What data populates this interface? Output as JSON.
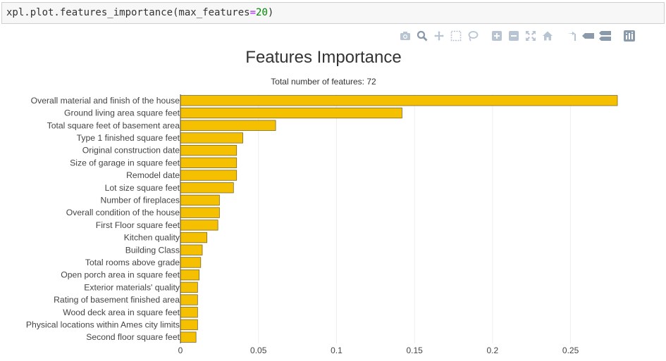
{
  "code": {
    "prefix": "xpl.plot.features_importance(max_features",
    "equals": "=",
    "number": "20",
    "suffix": ")"
  },
  "modebar": {
    "icons": [
      "camera-icon",
      "zoom-icon",
      "pan-icon",
      "box-select-icon",
      "lasso-icon",
      "zoom-in-icon",
      "zoom-out-icon",
      "autoscale-icon",
      "reset-axes-icon",
      "spike-lines-icon",
      "hover-closest-icon",
      "hover-compare-icon",
      "plotly-logo-icon"
    ]
  },
  "chart_data": {
    "type": "bar",
    "orientation": "horizontal",
    "title": "Features Importance",
    "subtitle": "Total number of features: 72",
    "xlabel": "",
    "ylabel": "",
    "xlim": [
      0,
      0.28
    ],
    "xticks": [
      0,
      0.05,
      0.1,
      0.15,
      0.2,
      0.25
    ],
    "xtick_labels": [
      "0",
      "0.05",
      "0.1",
      "0.15",
      "0.2",
      "0.25"
    ],
    "grid": true,
    "bar_color": "#f5c000",
    "bar_edge_color": "#7a6a2a",
    "categories": [
      "Overall material and finish of the house",
      "Ground living area square feet",
      "Total square feet of basement area",
      "Type 1 finished square feet",
      "Original construction date",
      "Size of garage in square feet",
      "Remodel date",
      "Lot size square feet",
      "Number of fireplaces",
      "Overall condition of the house",
      "First Floor square feet",
      "Kitchen quality",
      "Building Class",
      "Total rooms above grade",
      "Open porch area in square feet",
      "Exterior materials' quality",
      "Rating of basement finished area",
      "Wood deck area in square feet",
      "Physical locations within Ames city limits",
      "Second floor square feet"
    ],
    "values": [
      0.28,
      0.142,
      0.061,
      0.04,
      0.036,
      0.036,
      0.036,
      0.034,
      0.025,
      0.025,
      0.024,
      0.017,
      0.014,
      0.013,
      0.012,
      0.011,
      0.011,
      0.011,
      0.011,
      0.01
    ]
  }
}
